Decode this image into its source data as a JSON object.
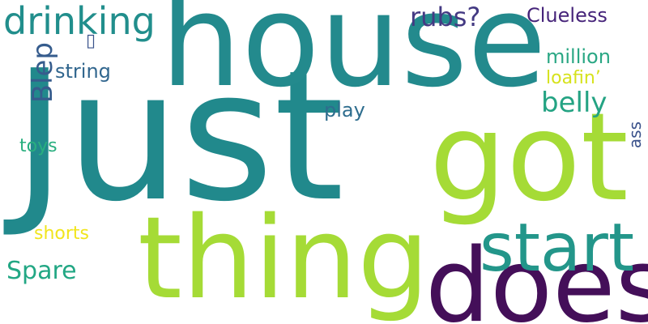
{
  "words": {
    "just": {
      "text": "Just",
      "color": "#21898c"
    },
    "house": {
      "text": "house",
      "color": "#238a8d"
    },
    "got": {
      "text": "got",
      "color": "#a5db36"
    },
    "thing": {
      "text": "thing",
      "color": "#a5db36"
    },
    "does": {
      "text": "does",
      "color": "#440f59"
    },
    "start": {
      "text": "start",
      "color": "#23968a"
    },
    "drinking": {
      "text": "drinking",
      "color": "#218e8c"
    },
    "rubs": {
      "text": "rubs?",
      "color": "#443a83"
    },
    "clueless": {
      "text": "Clueless",
      "color": "#46247a"
    },
    "million": {
      "text": "million",
      "color": "#2aa784"
    },
    "loafin": {
      "text": "loafin’",
      "color": "#d6e21c"
    },
    "belly": {
      "text": "belly",
      "color": "#24a383"
    },
    "blep": {
      "text": "Blep",
      "color": "#365c8d"
    },
    "string": {
      "text": "string",
      "color": "#31668e"
    },
    "play": {
      "text": "play",
      "color": "#2e6d8e"
    },
    "ass": {
      "text": "ass",
      "color": "#3b528b"
    },
    "toys": {
      "text": "toys",
      "color": "#29af7f"
    },
    "shorts": {
      "text": "shorts",
      "color": "#f1e51d"
    },
    "spare": {
      "text": "Spare",
      "color": "#22a784"
    },
    "glyph": {
      "text": "▯",
      "color": "#3a538b"
    }
  }
}
